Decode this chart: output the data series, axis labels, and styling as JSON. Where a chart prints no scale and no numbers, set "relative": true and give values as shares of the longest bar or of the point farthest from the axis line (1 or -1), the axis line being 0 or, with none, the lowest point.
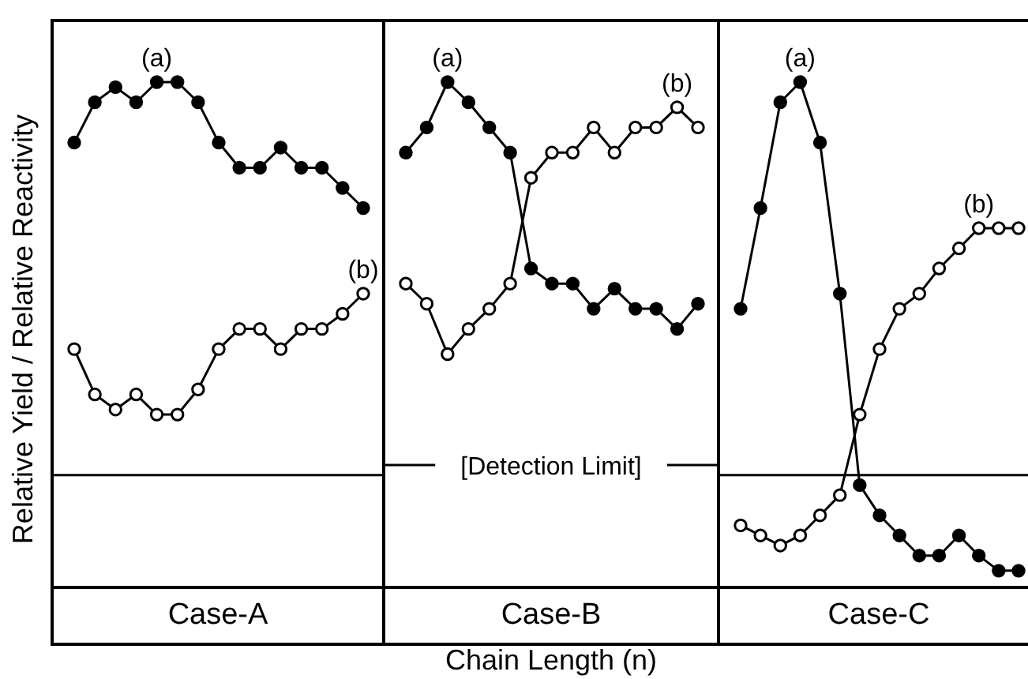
{
  "chart_data": [
    {
      "type": "line",
      "ylabel": "Relative Yield / Relative Reactivity",
      "xlabel": "Case-A",
      "relative": true,
      "marker": "circle",
      "categories": [
        null,
        null,
        null,
        null,
        null,
        null,
        null,
        null,
        null,
        null,
        null,
        null,
        null,
        null,
        null
      ],
      "series": [
        {
          "name": "(a)",
          "color": "#000000",
          "values": [
            0.88,
            0.96,
            0.99,
            0.96,
            1.0,
            1.0,
            0.96,
            0.88,
            0.83,
            0.83,
            0.87,
            0.83,
            0.83,
            0.79,
            0.75
          ]
        },
        {
          "name": "(b)",
          "color": "#000000",
          "values": [
            0.47,
            0.38,
            0.35,
            0.38,
            0.34,
            0.34,
            0.39,
            0.47,
            0.51,
            0.51,
            0.47,
            0.51,
            0.51,
            0.54,
            0.58
          ]
        }
      ],
      "ref_lines": [
        {
          "axis": "y",
          "value": 0.22,
          "label": null,
          "color": "#000000"
        }
      ]
    },
    {
      "type": "line",
      "xlabel": "Case-B",
      "relative": true,
      "marker": "circle",
      "annotations": [
        "Chain Length (n)"
      ],
      "categories": [
        null,
        null,
        null,
        null,
        null,
        null,
        null,
        null,
        null,
        null,
        null,
        null,
        null,
        null,
        null
      ],
      "series": [
        {
          "name": "(a)",
          "color": "#000000",
          "values": [
            0.86,
            0.91,
            1.0,
            0.96,
            0.91,
            0.86,
            0.63,
            0.6,
            0.6,
            0.55,
            0.59,
            0.55,
            0.55,
            0.51,
            0.56
          ]
        },
        {
          "name": "(b)",
          "color": "#000000",
          "values": [
            0.6,
            0.56,
            0.46,
            0.51,
            0.55,
            0.6,
            0.81,
            0.86,
            0.86,
            0.91,
            0.86,
            0.91,
            0.91,
            0.95,
            0.91
          ]
        }
      ],
      "ref_lines": [
        {
          "axis": "y",
          "value": 0.24,
          "label": "[Detection Limit]",
          "color": "#000000"
        }
      ]
    },
    {
      "type": "line",
      "xlabel": "Case-C",
      "relative": true,
      "marker": "circle",
      "categories": [
        null,
        null,
        null,
        null,
        null,
        null,
        null,
        null,
        null,
        null,
        null,
        null,
        null,
        null,
        null
      ],
      "series": [
        {
          "name": "(a)",
          "color": "#000000",
          "values": [
            0.55,
            0.75,
            0.96,
            1.0,
            0.88,
            0.58,
            0.2,
            0.14,
            0.1,
            0.06,
            0.06,
            0.1,
            0.06,
            0.03,
            0.03
          ]
        },
        {
          "name": "(b)",
          "color": "#000000",
          "values": [
            0.12,
            0.1,
            0.08,
            0.1,
            0.14,
            0.18,
            0.34,
            0.47,
            0.55,
            0.58,
            0.63,
            0.67,
            0.71,
            0.71,
            0.71
          ]
        }
      ],
      "ref_lines": [
        {
          "axis": "y",
          "value": 0.22,
          "label": null,
          "color": "#000000"
        }
      ]
    }
  ]
}
